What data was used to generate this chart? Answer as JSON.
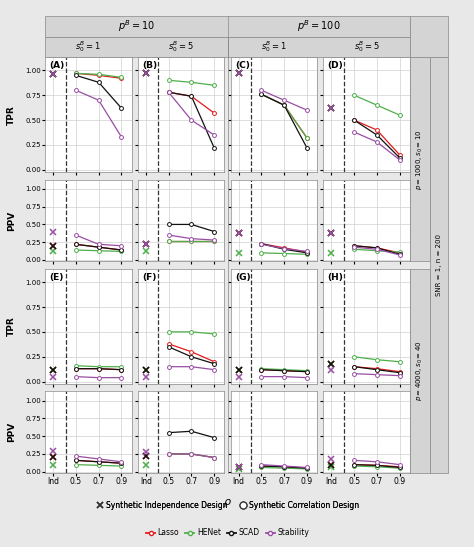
{
  "colors": {
    "lasso": "#e41a1c",
    "henet": "#4daf4a",
    "scad": "#111111",
    "stability": "#984ea3"
  },
  "bg_color": "#e8e8e8",
  "header_color": "#d4d4d4",
  "panel_bg": "#ffffff",
  "grid_color": "#d0d0d0",
  "panels": {
    "A_tpr": {
      "ind_x": {
        "lasso": 0.96,
        "henet": 0.96,
        "scad": 0.96,
        "stability": 0.96
      },
      "corr": {
        "lasso": [
          0.97,
          0.95,
          0.92
        ],
        "henet": [
          0.97,
          0.96,
          0.93
        ],
        "scad": [
          0.95,
          0.88,
          0.62
        ],
        "stability": [
          0.8,
          0.7,
          0.33
        ]
      }
    },
    "A_ppv": {
      "ind_x": {
        "lasso": 0.2,
        "henet": 0.12,
        "scad": 0.2,
        "stability": 0.4
      },
      "corr": {
        "lasso": [
          0.22,
          0.18,
          0.14
        ],
        "henet": [
          0.14,
          0.13,
          0.12
        ],
        "scad": [
          0.22,
          0.18,
          0.14
        ],
        "stability": [
          0.35,
          0.22,
          0.2
        ]
      }
    },
    "B_tpr": {
      "ind_x": {
        "lasso": 0.97,
        "henet": 0.97,
        "scad": 0.97,
        "stability": 0.97
      },
      "corr": {
        "lasso": [
          0.78,
          0.74,
          0.57
        ],
        "henet": [
          0.9,
          0.88,
          0.85
        ],
        "scad": [
          0.78,
          0.74,
          0.22
        ],
        "stability": [
          0.78,
          0.5,
          0.35
        ]
      }
    },
    "B_ppv": {
      "ind_x": {
        "lasso": 0.22,
        "henet": 0.12,
        "scad": 0.22,
        "stability": 0.22
      },
      "corr": {
        "lasso": [
          0.27,
          0.27,
          0.27
        ],
        "henet": [
          0.27,
          0.27,
          0.27
        ],
        "scad": [
          0.5,
          0.5,
          0.4
        ],
        "stability": [
          0.35,
          0.3,
          0.28
        ]
      }
    },
    "C_tpr": {
      "ind_x": {
        "lasso": 0.97,
        "henet": 0.97,
        "scad": 0.97,
        "stability": 0.97
      },
      "corr": {
        "lasso": [
          0.76,
          0.65,
          0.32
        ],
        "henet": [
          0.76,
          0.65,
          0.32
        ],
        "scad": [
          0.76,
          0.65,
          0.22
        ],
        "stability": [
          0.8,
          0.7,
          0.6
        ]
      }
    },
    "C_ppv": {
      "ind_x": {
        "lasso": 0.38,
        "henet": 0.1,
        "scad": 0.38,
        "stability": 0.38
      },
      "corr": {
        "lasso": [
          0.23,
          0.17,
          0.11
        ],
        "henet": [
          0.1,
          0.09,
          0.08
        ],
        "scad": [
          0.23,
          0.15,
          0.1
        ],
        "stability": [
          0.22,
          0.16,
          0.12
        ]
      }
    },
    "D_tpr": {
      "ind_x": {
        "lasso": 0.62,
        "henet": 0.62,
        "scad": 0.62,
        "stability": 0.62
      },
      "corr": {
        "lasso": [
          0.5,
          0.4,
          0.15
        ],
        "henet": [
          0.75,
          0.65,
          0.55
        ],
        "scad": [
          0.5,
          0.35,
          0.12
        ],
        "stability": [
          0.38,
          0.28,
          0.1
        ]
      }
    },
    "D_ppv": {
      "ind_x": {
        "lasso": 0.38,
        "henet": 0.1,
        "scad": 0.38,
        "stability": 0.38
      },
      "corr": {
        "lasso": [
          0.2,
          0.17,
          0.1
        ],
        "henet": [
          0.15,
          0.13,
          0.11
        ],
        "scad": [
          0.2,
          0.17,
          0.08
        ],
        "stability": [
          0.18,
          0.15,
          0.07
        ]
      }
    },
    "E_tpr": {
      "ind_x": {
        "lasso": 0.12,
        "henet": 0.12,
        "scad": 0.12,
        "stability": 0.05
      },
      "corr": {
        "lasso": [
          0.13,
          0.13,
          0.12
        ],
        "henet": [
          0.16,
          0.15,
          0.15
        ],
        "scad": [
          0.13,
          0.13,
          0.12
        ],
        "stability": [
          0.05,
          0.04,
          0.04
        ]
      }
    },
    "E_ppv": {
      "ind_x": {
        "lasso": 0.21,
        "henet": 0.1,
        "scad": 0.21,
        "stability": 0.29
      },
      "corr": {
        "lasso": [
          0.16,
          0.14,
          0.12
        ],
        "henet": [
          0.1,
          0.09,
          0.08
        ],
        "scad": [
          0.16,
          0.14,
          0.12
        ],
        "stability": [
          0.22,
          0.18,
          0.14
        ]
      }
    },
    "F_tpr": {
      "ind_x": {
        "lasso": 0.12,
        "henet": 0.12,
        "scad": 0.12,
        "stability": 0.05
      },
      "corr": {
        "lasso": [
          0.38,
          0.3,
          0.2
        ],
        "henet": [
          0.5,
          0.5,
          0.48
        ],
        "scad": [
          0.35,
          0.25,
          0.18
        ],
        "stability": [
          0.15,
          0.15,
          0.12
        ]
      }
    },
    "F_ppv": {
      "ind_x": {
        "lasso": 0.22,
        "henet": 0.1,
        "scad": 0.22,
        "stability": 0.28
      },
      "corr": {
        "lasso": [
          0.25,
          0.25,
          0.2
        ],
        "henet": [
          0.25,
          0.25,
          0.2
        ],
        "scad": [
          0.55,
          0.57,
          0.48
        ],
        "stability": [
          0.25,
          0.25,
          0.2
        ]
      }
    },
    "G_tpr": {
      "ind_x": {
        "lasso": 0.12,
        "henet": 0.12,
        "scad": 0.12,
        "stability": 0.05
      },
      "corr": {
        "lasso": [
          0.12,
          0.11,
          0.1
        ],
        "henet": [
          0.13,
          0.12,
          0.11
        ],
        "scad": [
          0.12,
          0.11,
          0.1
        ],
        "stability": [
          0.05,
          0.05,
          0.04
        ]
      }
    },
    "G_ppv": {
      "ind_x": {
        "lasso": 0.06,
        "henet": 0.04,
        "scad": 0.06,
        "stability": 0.07
      },
      "corr": {
        "lasso": [
          0.08,
          0.07,
          0.05
        ],
        "henet": [
          0.06,
          0.05,
          0.04
        ],
        "scad": [
          0.08,
          0.07,
          0.05
        ],
        "stability": [
          0.1,
          0.08,
          0.06
        ]
      }
    },
    "H_tpr": {
      "ind_x": {
        "lasso": 0.18,
        "henet": 0.18,
        "scad": 0.18,
        "stability": 0.12
      },
      "corr": {
        "lasso": [
          0.15,
          0.13,
          0.1
        ],
        "henet": [
          0.25,
          0.22,
          0.2
        ],
        "scad": [
          0.15,
          0.12,
          0.09
        ],
        "stability": [
          0.08,
          0.07,
          0.06
        ]
      }
    },
    "H_ppv": {
      "ind_x": {
        "lasso": 0.1,
        "henet": 0.06,
        "scad": 0.1,
        "stability": 0.18
      },
      "corr": {
        "lasso": [
          0.1,
          0.09,
          0.07
        ],
        "henet": [
          0.08,
          0.07,
          0.05
        ],
        "scad": [
          0.1,
          0.09,
          0.06
        ],
        "stability": [
          0.16,
          0.14,
          0.1
        ]
      }
    }
  },
  "plot_grid": [
    [
      "A_tpr",
      "B_tpr",
      "C_tpr",
      "D_tpr"
    ],
    [
      "A_ppv",
      "B_ppv",
      "C_ppv",
      "D_ppv"
    ],
    [
      "E_tpr",
      "F_tpr",
      "G_tpr",
      "H_tpr"
    ],
    [
      "E_ppv",
      "F_ppv",
      "G_ppv",
      "H_ppv"
    ]
  ],
  "panel_letters": [
    [
      "(A)",
      "(B)",
      "(C)",
      "(D)"
    ],
    [
      "",
      "",
      "",
      ""
    ],
    [
      "(E)",
      "(F)",
      "(G)",
      "(H)"
    ],
    [
      "",
      "",
      "",
      ""
    ]
  ],
  "row_metrics": [
    "TPR",
    "PPV",
    "TPR",
    "PPV"
  ],
  "col_top_headers": [
    "$p^B = 10$",
    "$p^B = 100$"
  ],
  "col_sub_headers": [
    "$s_0^B = 1$",
    "$s_0^B = 5$",
    "$s_0^B = 1$",
    "$s_0^B = 5$"
  ],
  "right_labels_inner": [
    "$p = 1000, s_0 = 10$",
    "$p = 4000, s_0 = 40$"
  ],
  "right_label_outer": "SNR = 1, n = 200",
  "xlabel": "$\\rho$",
  "x_tick_labels": [
    "Ind",
    "0.5",
    "0.7",
    "0.9"
  ],
  "yticks": [
    0.0,
    0.25,
    0.5,
    0.75,
    1.0
  ],
  "methods": [
    "lasso",
    "henet",
    "scad",
    "stability"
  ],
  "legend_sym": [
    "x  Synthetic Independence Design",
    "o  Synthetic Correlation Design"
  ],
  "legend_lines": [
    "Lasso",
    "HENet",
    "SCAD",
    "Stability"
  ]
}
